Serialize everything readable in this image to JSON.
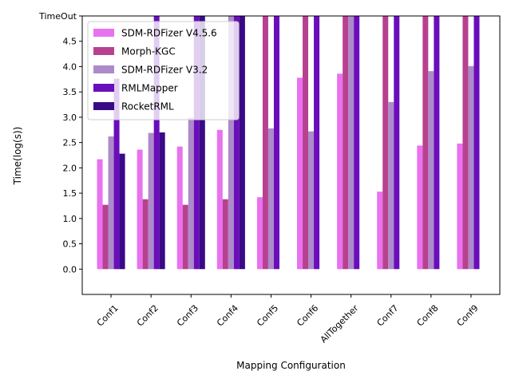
{
  "chart_data": {
    "type": "bar",
    "title": "",
    "xlabel": "Mapping Configuration",
    "ylabel": "Time(log(s))",
    "categories": [
      "Conf1",
      "Conf2",
      "Conf3",
      "Conf4",
      "Conf5",
      "Conf6",
      "AllTogether",
      "Conf7",
      "Conf8",
      "Conf9"
    ],
    "ylim": [
      -0.5,
      5.0
    ],
    "yticks": [
      0.0,
      0.5,
      1.0,
      1.5,
      2.0,
      2.5,
      3.0,
      3.5,
      4.0,
      4.5,
      5.0
    ],
    "ytick_labels": [
      "0.0",
      "0.5",
      "1.0",
      "1.5",
      "2.0",
      "2.5",
      "3.0",
      "3.5",
      "4.0",
      "4.5",
      "TimeOut"
    ],
    "legend_position": "top-left",
    "grid": false,
    "series": [
      {
        "name": "SDM-RDFizer V4.5.6",
        "color": "#e872ef",
        "values": [
          2.17,
          2.36,
          2.42,
          2.75,
          1.42,
          3.78,
          3.86,
          1.53,
          2.44,
          2.48
        ]
      },
      {
        "name": "Morph-KGC",
        "color": "#b8418f",
        "values": [
          1.27,
          1.38,
          1.27,
          1.38,
          5.0,
          5.0,
          5.0,
          5.0,
          5.0,
          5.0
        ]
      },
      {
        "name": "SDM-RDFizer V3.2",
        "color": "#ad8ac9",
        "values": [
          2.62,
          2.69,
          2.99,
          5.0,
          2.78,
          2.72,
          5.0,
          3.3,
          3.91,
          4.01
        ]
      },
      {
        "name": "RMLMapper",
        "color": "#6a0dbb",
        "values": [
          3.76,
          5.0,
          5.0,
          5.0,
          5.0,
          5.0,
          5.0,
          5.0,
          5.0,
          5.0
        ]
      },
      {
        "name": "RocketRML",
        "color": "#390a85",
        "values": [
          2.28,
          2.7,
          5.0,
          5.0,
          null,
          null,
          null,
          null,
          null,
          null
        ]
      }
    ]
  }
}
